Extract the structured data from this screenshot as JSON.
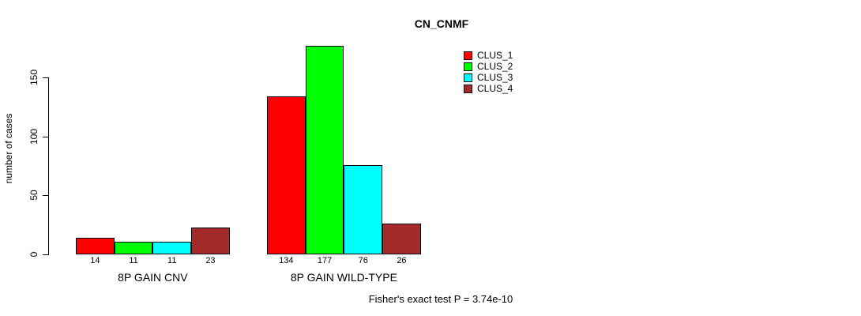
{
  "chart_data": {
    "type": "bar",
    "title": "CN_CNMF",
    "ylabel": "number of cases",
    "xlabel": "",
    "y_ticks": [
      0,
      50,
      100,
      150
    ],
    "ylim": [
      0,
      177
    ],
    "grid": false,
    "legend_position": "top-right",
    "series": [
      {
        "name": "CLUS_1",
        "color": "#FF0000"
      },
      {
        "name": "CLUS_2",
        "color": "#00FF00"
      },
      {
        "name": "CLUS_3",
        "color": "#00FFFF"
      },
      {
        "name": "CLUS_4",
        "color": "#A52A2A"
      }
    ],
    "groups": [
      {
        "label": "8P GAIN CNV",
        "values": [
          14,
          11,
          11,
          23
        ]
      },
      {
        "label": "8P GAIN WILD-TYPE",
        "values": [
          134,
          177,
          76,
          26
        ]
      }
    ],
    "bar_value_labels": [
      [
        "14",
        "11",
        "11",
        "23"
      ],
      [
        "134",
        "177",
        "76",
        "26"
      ]
    ],
    "annotation": "Fisher's exact test P = 3.74e-10"
  }
}
